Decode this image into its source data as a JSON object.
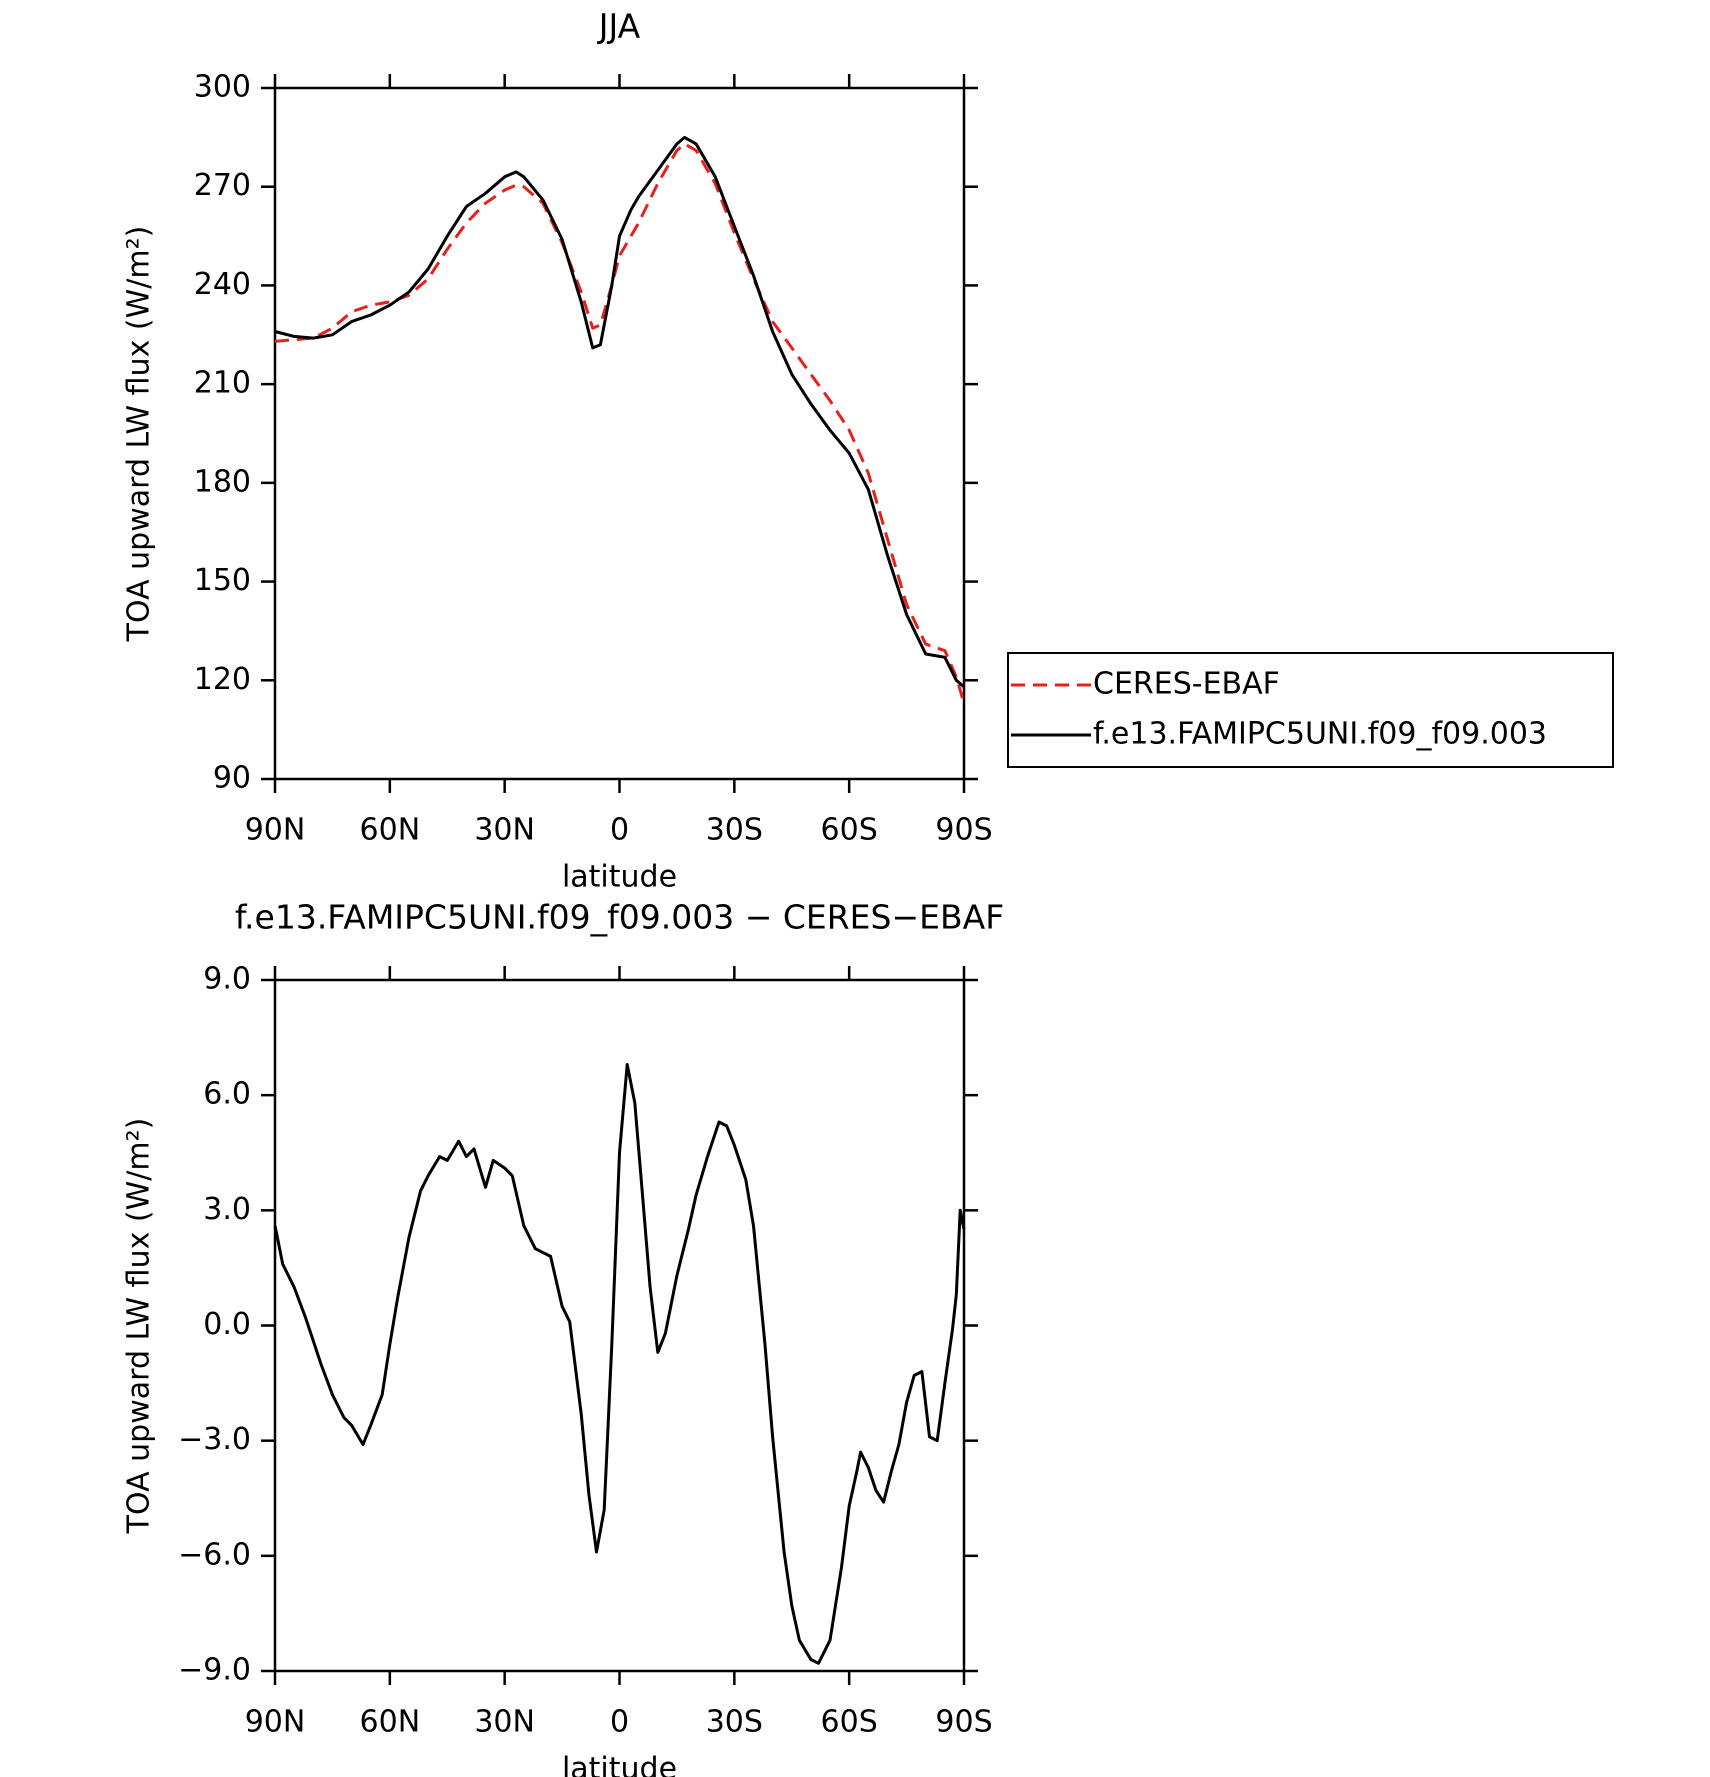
{
  "chart_data": [
    {
      "type": "line",
      "title": "JJA",
      "xlabel": "latitude",
      "ylabel": "TOA upward LW flux (W/m²)",
      "xlim": [
        90,
        -90
      ],
      "xticks": [
        {
          "value": 90,
          "label": "90N"
        },
        {
          "value": 60,
          "label": "60N"
        },
        {
          "value": 30,
          "label": "30N"
        },
        0,
        {
          "value": -30,
          "label": "30S"
        },
        {
          "value": -60,
          "label": "60S"
        },
        {
          "value": -90,
          "label": "90S"
        }
      ],
      "ylim": [
        90,
        300
      ],
      "yticks": [
        90,
        120,
        150,
        180,
        210,
        240,
        270,
        300
      ],
      "legend": "right",
      "x": [
        90,
        85,
        80,
        75,
        70,
        65,
        60,
        55,
        50,
        45,
        40,
        35,
        30,
        27,
        25,
        20,
        15,
        10,
        7,
        5,
        2,
        0,
        -3,
        -5,
        -10,
        -15,
        -17,
        -20,
        -25,
        -30,
        -35,
        -40,
        -45,
        -50,
        -55,
        -60,
        -65,
        -70,
        -75,
        -80,
        -85,
        -88,
        -90
      ],
      "series": [
        {
          "name": "CERES-EBAF",
          "color": "#e8201c",
          "dashed": true,
          "values": [
            223,
            223.5,
            224,
            227,
            232,
            234,
            235,
            237,
            242,
            251,
            259,
            265,
            269,
            270.5,
            270,
            265,
            253,
            238,
            227,
            228,
            240,
            249,
            255,
            259,
            271,
            281,
            283,
            281,
            271,
            256,
            242,
            229,
            221,
            213,
            205,
            196,
            183,
            163,
            143,
            131,
            129,
            121,
            113
          ]
        },
        {
          "name": "f.e13.FAMIPC5UNI.f09_f09.003",
          "color": "#000000",
          "dashed": false,
          "values": [
            226,
            224.5,
            224,
            225,
            229,
            231,
            234,
            238,
            245,
            255,
            264,
            268,
            273,
            274.5,
            273,
            266,
            254,
            235,
            221,
            222,
            240,
            255,
            263,
            267,
            275,
            283,
            285,
            283,
            273,
            258,
            243,
            226,
            213,
            204,
            196,
            189,
            178,
            158,
            140,
            128,
            127,
            120,
            118
          ]
        }
      ]
    },
    {
      "type": "line",
      "title": "f.e13.FAMIPC5UNI.f09_f09.003 − CERES−EBAF",
      "xlabel": "latitude",
      "ylabel": "TOA upward LW flux (W/m²)",
      "xlim": [
        90,
        -90
      ],
      "xticks": [
        {
          "value": 90,
          "label": "90N"
        },
        {
          "value": 60,
          "label": "60N"
        },
        {
          "value": 30,
          "label": "30N"
        },
        0,
        {
          "value": -30,
          "label": "30S"
        },
        {
          "value": -60,
          "label": "60S"
        },
        {
          "value": -90,
          "label": "90S"
        }
      ],
      "ylim": [
        -9,
        9
      ],
      "yticks": [
        {
          "value": -9,
          "label": "−9.0"
        },
        {
          "value": -6,
          "label": "−6.0"
        },
        {
          "value": -3,
          "label": "−3.0"
        },
        {
          "value": 0,
          "label": "0.0"
        },
        {
          "value": 3,
          "label": "3.0"
        },
        {
          "value": 6,
          "label": "6.0"
        },
        {
          "value": 9,
          "label": "9.0"
        }
      ],
      "x": [
        90,
        88,
        85,
        82,
        80,
        78,
        75,
        72,
        70,
        67,
        65,
        62,
        60,
        58,
        55,
        52,
        50,
        47,
        45,
        42,
        40,
        38,
        35,
        33,
        30,
        28,
        25,
        22,
        18,
        15,
        13,
        10,
        8,
        6,
        4,
        2,
        0,
        -2,
        -4,
        -6,
        -8,
        -10,
        -12,
        -15,
        -18,
        -20,
        -23,
        -26,
        -28,
        -30,
        -33,
        -35,
        -38,
        -40,
        -43,
        -45,
        -47,
        -50,
        -52,
        -55,
        -58,
        -60,
        -62,
        -63,
        -65,
        -67,
        -69,
        -71,
        -73,
        -75,
        -77,
        -79,
        -81,
        -83,
        -85,
        -87,
        -88,
        -89,
        -90
      ],
      "series": [
        {
          "color": "#000000",
          "dashed": false,
          "values": [
            2.6,
            1.6,
            1.0,
            0.2,
            -0.4,
            -1.0,
            -1.8,
            -2.4,
            -2.6,
            -3.1,
            -2.6,
            -1.8,
            -0.5,
            0.7,
            2.3,
            3.5,
            3.9,
            4.4,
            4.3,
            4.8,
            4.4,
            4.6,
            3.6,
            4.3,
            4.1,
            3.9,
            2.6,
            2.0,
            1.8,
            0.5,
            0.1,
            -2.3,
            -4.4,
            -5.9,
            -4.8,
            -0.5,
            4.5,
            6.8,
            5.8,
            3.4,
            1.0,
            -0.7,
            -0.2,
            1.3,
            2.5,
            3.4,
            4.4,
            5.3,
            5.2,
            4.7,
            3.8,
            2.6,
            -0.5,
            -2.9,
            -5.9,
            -7.3,
            -8.2,
            -8.7,
            -8.8,
            -8.2,
            -6.3,
            -4.7,
            -3.8,
            -3.3,
            -3.7,
            -4.3,
            -4.6,
            -3.8,
            -3.1,
            -2.0,
            -1.3,
            -1.2,
            -2.9,
            -3.0,
            -1.5,
            -0.1,
            0.8,
            3.0,
            2.5
          ]
        }
      ]
    }
  ]
}
